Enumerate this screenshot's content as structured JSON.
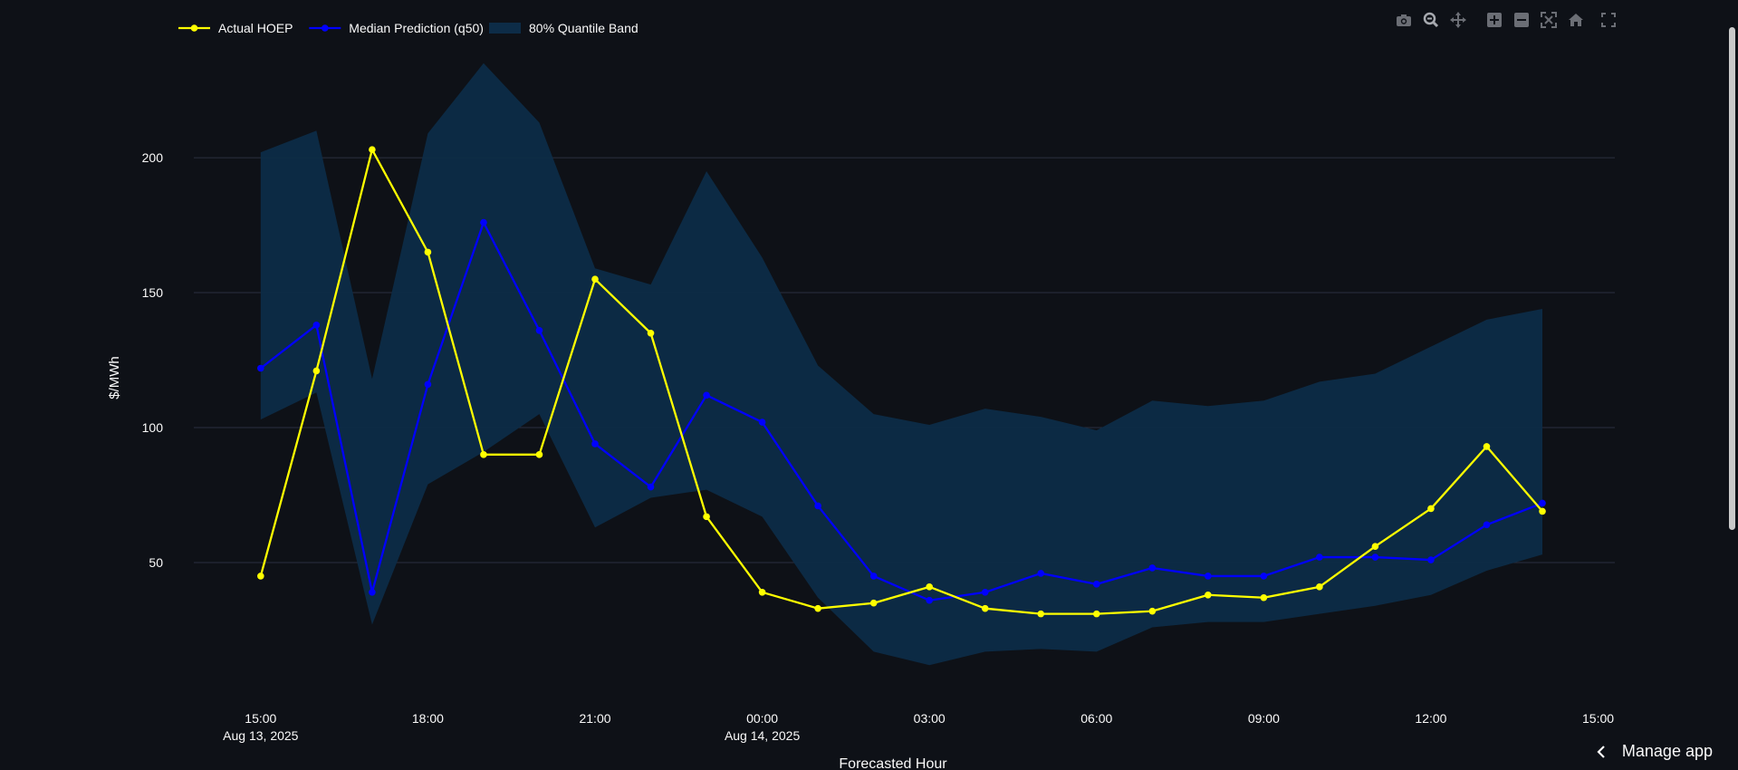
{
  "chart_data": {
    "type": "line",
    "xlabel": "Forecasted Hour",
    "ylabel": "$/MWh",
    "x_tick_labels": [
      {
        "hours": 0,
        "label": "15:00",
        "sublabel": "Aug 13, 2025"
      },
      {
        "hours": 3,
        "label": "18:00",
        "sublabel": ""
      },
      {
        "hours": 6,
        "label": "21:00",
        "sublabel": ""
      },
      {
        "hours": 9,
        "label": "00:00",
        "sublabel": "Aug 14, 2025"
      },
      {
        "hours": 12,
        "label": "03:00",
        "sublabel": ""
      },
      {
        "hours": 15,
        "label": "06:00",
        "sublabel": ""
      },
      {
        "hours": 18,
        "label": "09:00",
        "sublabel": ""
      },
      {
        "hours": 21,
        "label": "12:00",
        "sublabel": ""
      },
      {
        "hours": 24,
        "label": "15:00",
        "sublabel": ""
      }
    ],
    "xlim_hours": [
      -1.2,
      24.3
    ],
    "y_ticks": [
      50,
      100,
      150,
      200
    ],
    "ylim": [
      0,
      245
    ],
    "grid": true,
    "legend_placement": "top-left",
    "band": {
      "name": "80% Quantile Band",
      "color": "#0d2c47",
      "upper": [
        202,
        210,
        118,
        209,
        235,
        213,
        159,
        153,
        195,
        163,
        123,
        105,
        101,
        107,
        104,
        99,
        110,
        108,
        110,
        117,
        120,
        130,
        140,
        144
      ],
      "lower": [
        103,
        113,
        27,
        79,
        91,
        105,
        63,
        74,
        77,
        67,
        37,
        17,
        12,
        17,
        18,
        17,
        26,
        28,
        28,
        31,
        34,
        38,
        47,
        53
      ]
    },
    "series": [
      {
        "name": "Actual HOEP",
        "color": "#ffff00",
        "values": [
          45,
          121,
          203,
          165,
          90,
          90,
          155,
          135,
          67,
          39,
          33,
          35,
          41,
          33,
          31,
          31,
          32,
          38,
          37,
          41,
          56,
          70,
          93,
          69
        ]
      },
      {
        "name": "Median Prediction (q50)",
        "color": "#0000ff",
        "values": [
          122,
          138,
          39,
          116,
          176,
          136,
          94,
          78,
          112,
          102,
          71,
          45,
          36,
          39,
          46,
          42,
          48,
          45,
          45,
          52,
          52,
          51,
          64,
          72
        ]
      }
    ]
  },
  "toolbar_icons": [
    "camera-icon",
    "zoom-icon",
    "pan-icon",
    "zoom-in-icon",
    "zoom-out-icon",
    "autoscale-icon",
    "home-icon",
    "fullscreen-icon"
  ],
  "manage_app": {
    "label": "Manage app"
  }
}
